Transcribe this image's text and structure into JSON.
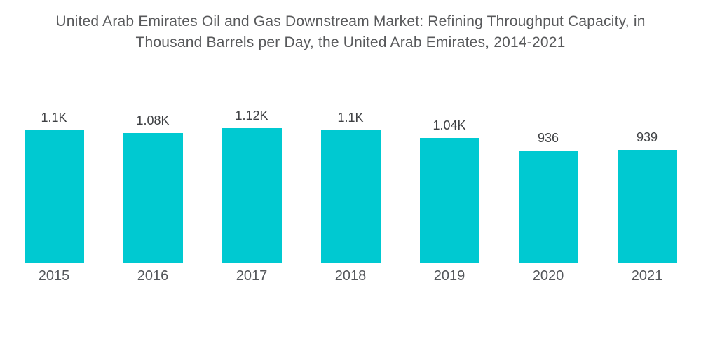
{
  "header": {
    "title_line1": "United Arab Emirates Oil and Gas Downstream Market: Refining Throughput Capacity, in",
    "title_line2": "Thousand Barrels per Day, the United Arab Emirates, 2014-2021"
  },
  "chart_data": {
    "type": "bar",
    "title": "United Arab Emirates Oil and Gas Downstream Market: Refining Throughput Capacity, in Thousand Barrels per Day, the United Arab Emirates, 2014-2021",
    "categories": [
      "2015",
      "2016",
      "2017",
      "2018",
      "2019",
      "2020",
      "2021"
    ],
    "values": [
      1100,
      1080,
      1120,
      1100,
      1040,
      936,
      939
    ],
    "value_labels": [
      "1.1K",
      "1.08K",
      "1.12K",
      "1.1K",
      "1.04K",
      "936",
      "939"
    ],
    "xlabel": "",
    "ylabel": "",
    "ylim": [
      0,
      1200
    ],
    "grid": false,
    "legend": "none",
    "axes_hidden": true,
    "bar_color": "#00C9D1",
    "title_color": "#58595B",
    "value_label_color": "#3E4043",
    "axis_label_color": "#53565A"
  }
}
